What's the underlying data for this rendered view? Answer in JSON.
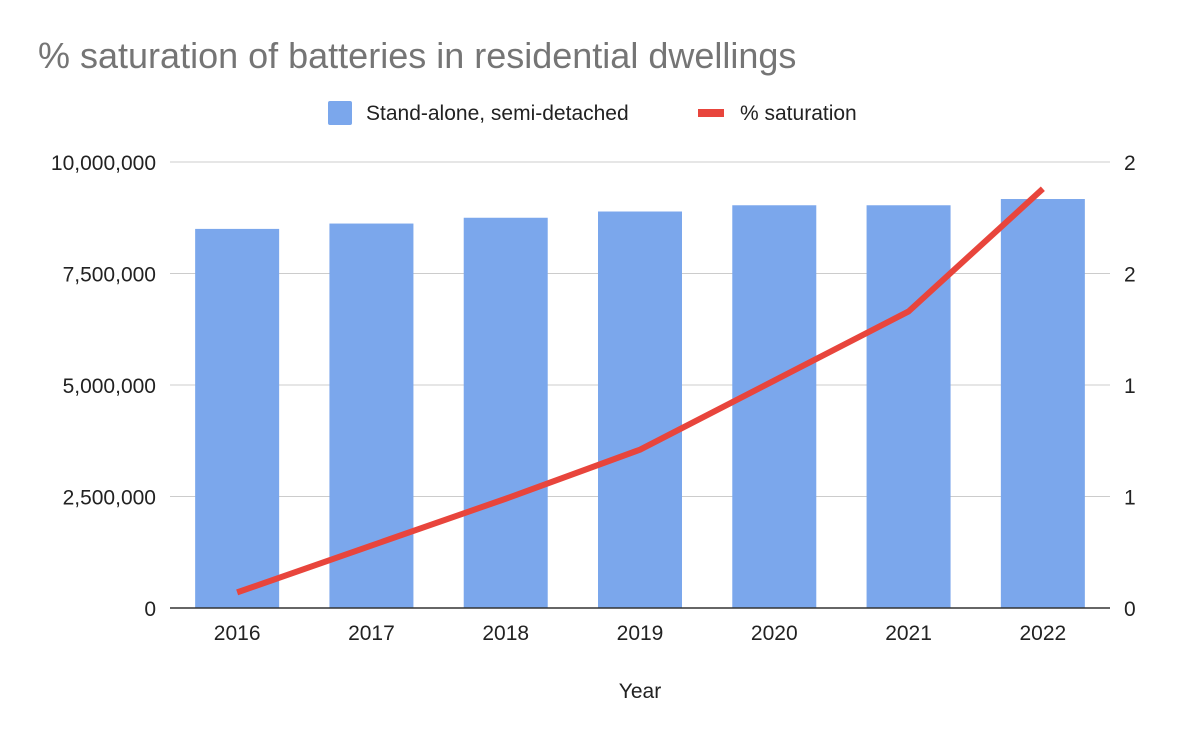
{
  "chart_data": {
    "type": "bar+line",
    "title": "% saturation of batteries in residential dwellings",
    "xlabel": "Year",
    "ylabel_left": "",
    "ylabel_right": "",
    "categories": [
      "2016",
      "2017",
      "2018",
      "2019",
      "2020",
      "2021",
      "2022"
    ],
    "series": [
      {
        "name": "Stand-alone, semi-detached",
        "type": "bar",
        "axis": "left",
        "color": "#7ba7ec",
        "values": [
          8500000,
          8620000,
          8750000,
          8890000,
          9030000,
          9030000,
          9170000
        ]
      },
      {
        "name": "% saturation",
        "type": "line",
        "axis": "right",
        "color": "#e8453c",
        "values": [
          0.07,
          0.28,
          0.49,
          0.71,
          1.02,
          1.33,
          1.88
        ]
      }
    ],
    "left_axis": {
      "ylim": [
        0,
        10000000
      ],
      "ticks": [
        0,
        2500000,
        5000000,
        7500000,
        10000000
      ],
      "tick_labels": [
        "0",
        "2,500,000",
        "5,000,000",
        "7,500,000",
        "10,000,000"
      ]
    },
    "right_axis": {
      "ylim": [
        0,
        2
      ],
      "ticks": [
        0,
        0.5,
        1,
        1.5,
        2
      ],
      "tick_labels": [
        "0",
        "1",
        "1",
        "2",
        "2"
      ]
    },
    "grid": true,
    "legend_position": "top-center"
  }
}
